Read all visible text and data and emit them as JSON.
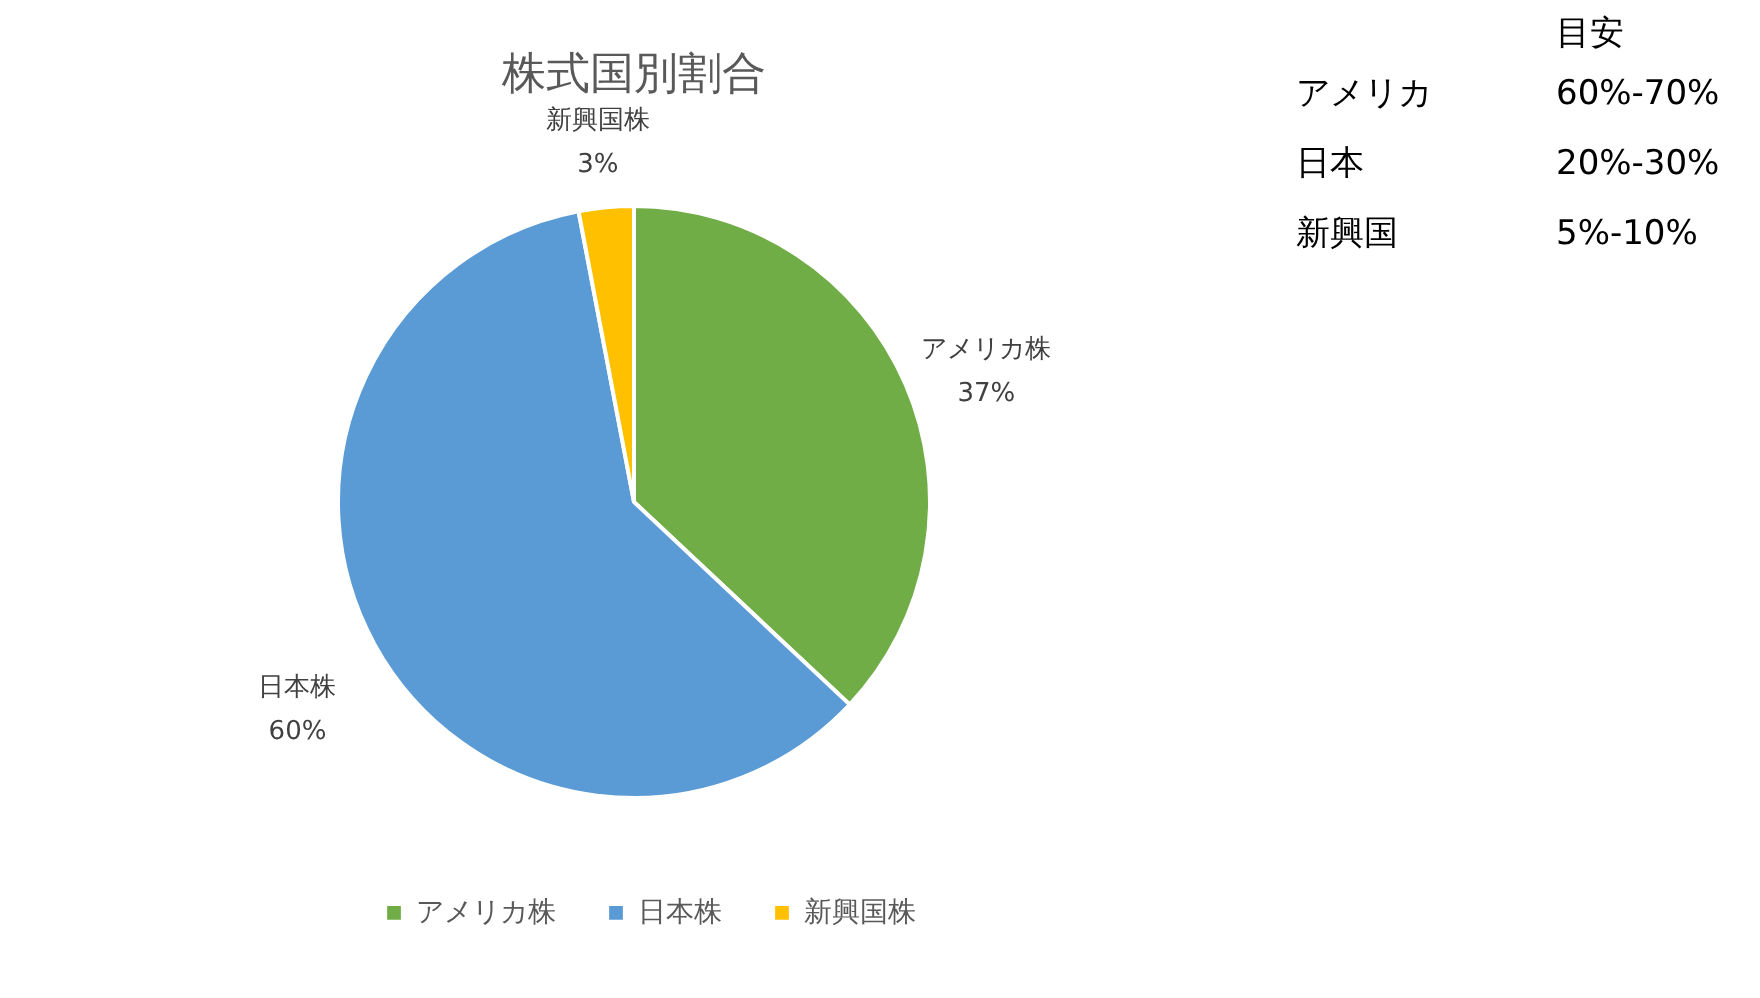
{
  "chart_data": [
    {
      "type": "pie",
      "title": "株式国別割合",
      "categories": [
        "アメリカ株",
        "日本株",
        "新興国株"
      ],
      "values": [
        37,
        60,
        3
      ],
      "colors": [
        "#70ad47",
        "#5b9bd5",
        "#ffc000"
      ],
      "value_labels": [
        "37%",
        "60%",
        "3%"
      ],
      "legend": "bottom"
    },
    {
      "type": "other",
      "title": "目安",
      "annotations": [
        "アメリカ",
        "60%-70%",
        "日本",
        "20%-30%",
        "新興国",
        "5%-10%"
      ]
    }
  ]
}
